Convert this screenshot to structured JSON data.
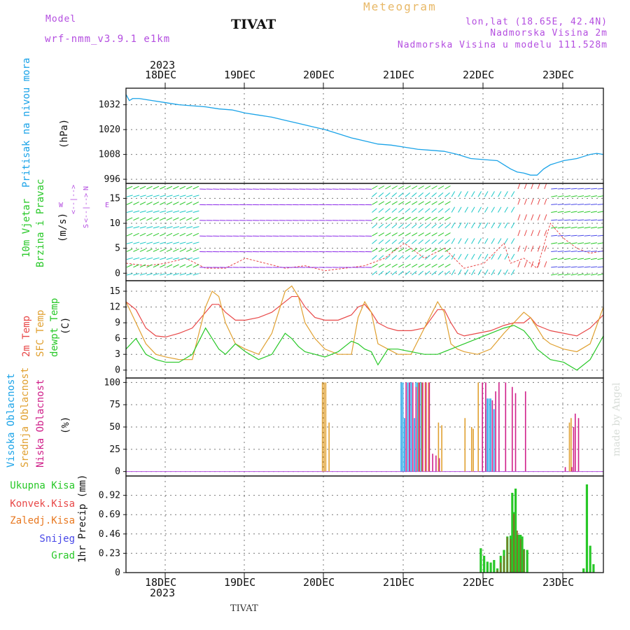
{
  "header": {
    "model_label": "Model",
    "model_name": "wrf-nmm_v3.9.1  e1km",
    "station": "TIVAT",
    "meteogram_label": "Meteogram",
    "coords": "lon,lat (18.65E, 42.4N)",
    "elev": "Nadmorska Visina 2m",
    "model_elev": "Nadmorska Visina u modelu 111.528m"
  },
  "footer": {
    "station": "TIVAT",
    "credit": "made by Angel"
  },
  "colors": {
    "pressure": "#1aa3e8",
    "t2m": "#e84848",
    "sfc": "#e0a030",
    "dew": "#28c828",
    "high_cloud": "#1aa3e8",
    "mid_cloud": "#e0a030",
    "low_cloud": "#d0208a",
    "total_rain": "#28c828",
    "conv_rain": "#e84848",
    "strat_rain": "#e87820",
    "snow": "#4848e8",
    "hail": "#28c8c8",
    "label_magenta": "#b44ee0",
    "title_gold": "#e8b866"
  },
  "time_axis": {
    "year": "2023",
    "dates": [
      "18DEC",
      "19DEC",
      "20DEC",
      "21DEC",
      "22DEC",
      "23DEC"
    ]
  },
  "labels": {
    "pressure": [
      "Pritisak na nivou mora",
      "(hPa)"
    ],
    "wind": [
      "10m Vjetar",
      "Brzina i Pravac",
      "(m/s)"
    ],
    "wind_compass": [
      "W",
      "<--|-->",
      "E",
      "S",
      "<--|-->",
      "N"
    ],
    "temp": [
      "2m Temp",
      "SFC Temp",
      "dewpt Temp",
      "(C)"
    ],
    "cloud": [
      "Visoka Oblacnost",
      "Srednja Oblacnost",
      "Niska Oblacnost",
      "(%)"
    ],
    "precip_axis": "1hr Precip (mm)",
    "precip_legend": [
      "Ukupna Kisa",
      "Konvek.Kisa",
      "Zaledj.Kisa",
      "Snijeg",
      "Grad"
    ]
  },
  "chart_data": [
    {
      "type": "line",
      "x_unit": "hours since 2023-12-17 12:00 UTC",
      "xlim": [
        0,
        144
      ],
      "ylim": [
        994,
        1040
      ],
      "yticks": [
        "996",
        "1008",
        "1020",
        "1032"
      ],
      "series": [
        {
          "x": [
            0,
            1,
            2,
            4,
            6,
            8,
            12,
            16,
            20,
            24,
            28,
            32,
            36,
            40,
            44,
            48,
            52,
            56,
            60,
            64,
            68,
            72,
            76,
            80,
            84,
            88,
            92,
            96,
            100,
            104,
            108,
            112,
            114,
            116,
            118,
            120,
            122,
            124,
            126,
            128,
            130,
            132,
            134,
            136,
            138,
            140,
            142,
            144
          ],
          "values": [
            1037,
            1034,
            1035,
            1035,
            1034.5,
            1034,
            1033,
            1032,
            1031.5,
            1031,
            1030,
            1029.5,
            1028,
            1027,
            1026,
            1024.5,
            1023,
            1021.5,
            1020,
            1018,
            1016,
            1014.5,
            1013,
            1012.5,
            1011.5,
            1010.5,
            1010,
            1009.5,
            1008,
            1006,
            1005.5,
            1005,
            1003,
            1001,
            999.5,
            999,
            998,
            998,
            1001,
            1003,
            1004,
            1005,
            1005.5,
            1006,
            1007,
            1008,
            1008.5,
            1008
          ]
        }
      ]
    },
    {
      "type": "scatter",
      "note": "wind barbs (direction + speed)",
      "xlim": [
        0,
        144
      ],
      "ylim": [
        -1.5,
        18
      ],
      "yticks": [
        "0",
        "5",
        "10",
        "15"
      ],
      "series": [
        {
          "name": "wind speed",
          "x": [
            0,
            6,
            12,
            18,
            24,
            30,
            36,
            42,
            48,
            54,
            60,
            66,
            72,
            78,
            84,
            90,
            96,
            102,
            108,
            114,
            116,
            120,
            124,
            128,
            132,
            136,
            140,
            144
          ],
          "values": [
            2,
            1.5,
            2,
            3,
            1,
            1,
            3,
            2,
            1,
            1.5,
            0.5,
            1,
            1.5,
            3,
            6,
            3,
            5,
            1,
            2,
            6,
            2,
            3,
            1,
            10,
            7,
            5,
            4,
            4.5
          ]
        }
      ]
    },
    {
      "type": "line",
      "xlim": [
        0,
        144
      ],
      "ylim": [
        -1.5,
        17
      ],
      "yticks": [
        "0",
        "3",
        "6",
        "9",
        "12",
        "15"
      ],
      "series": [
        {
          "name": "2m Temp",
          "x": [
            0,
            3,
            6,
            9,
            12,
            16,
            20,
            24,
            26,
            28,
            30,
            33,
            36,
            40,
            44,
            48,
            50,
            52,
            54,
            57,
            60,
            64,
            68,
            70,
            72,
            74,
            76,
            79,
            82,
            86,
            90,
            94,
            96,
            98,
            100,
            102,
            106,
            110,
            114,
            117,
            120,
            122,
            124,
            126,
            128,
            132,
            136,
            140,
            144
          ],
          "values": [
            13,
            11.5,
            8,
            6.5,
            6.3,
            7,
            8,
            11,
            12.5,
            12.5,
            11,
            9.5,
            9.5,
            10,
            11,
            13,
            14,
            14,
            12,
            10,
            9.5,
            9.5,
            10.5,
            12,
            12.5,
            11,
            9,
            8,
            7.5,
            7.5,
            8,
            11.5,
            11.5,
            9,
            7,
            6.5,
            7,
            7.5,
            8.5,
            9,
            9,
            10,
            8.5,
            8,
            7.5,
            7,
            6.5,
            8,
            10.5
          ]
        },
        {
          "name": "SFC Temp",
          "x": [
            0,
            3,
            6,
            9,
            12,
            16,
            20,
            24,
            26,
            28,
            30,
            33,
            36,
            40,
            44,
            48,
            50,
            52,
            54,
            57,
            60,
            64,
            68,
            70,
            72,
            74,
            76,
            79,
            82,
            86,
            90,
            94,
            96,
            98,
            100,
            102,
            106,
            110,
            114,
            117,
            120,
            122,
            124,
            126,
            128,
            132,
            136,
            140,
            144
          ],
          "values": [
            13,
            9,
            5,
            3,
            2.5,
            2,
            2,
            12,
            15,
            14,
            9,
            5,
            4,
            3,
            7,
            15,
            16,
            14,
            9,
            6,
            4,
            3,
            3,
            10,
            13,
            11,
            5,
            4,
            3,
            3,
            8,
            13,
            11,
            5,
            4,
            3.5,
            3,
            4,
            7,
            9,
            11,
            10,
            8,
            6,
            5,
            4,
            3.5,
            5,
            12
          ]
        },
        {
          "name": "dewpt Temp",
          "x": [
            0,
            3,
            6,
            9,
            12,
            16,
            20,
            24,
            26,
            28,
            30,
            33,
            36,
            40,
            44,
            48,
            50,
            52,
            54,
            57,
            60,
            64,
            68,
            70,
            72,
            74,
            76,
            79,
            82,
            86,
            90,
            94,
            96,
            98,
            100,
            102,
            106,
            110,
            114,
            117,
            120,
            122,
            124,
            126,
            128,
            132,
            136,
            140,
            144
          ],
          "values": [
            4,
            6,
            3,
            2,
            1.5,
            1.5,
            3,
            8,
            6,
            4,
            3,
            5,
            3.5,
            2,
            3,
            7,
            6,
            4.5,
            3.5,
            3,
            2.5,
            3.5,
            5.5,
            5,
            4,
            3.5,
            1,
            4,
            4,
            3.5,
            3,
            3,
            3.5,
            4,
            4.5,
            5,
            6,
            7,
            8,
            8.5,
            7.5,
            6,
            4,
            3,
            2,
            1.5,
            0,
            2,
            6.5
          ]
        }
      ]
    },
    {
      "type": "bar",
      "xlim": [
        0,
        144
      ],
      "ylim": [
        -5,
        105
      ],
      "yticks": [
        "0",
        "25",
        "50",
        "75",
        "100"
      ],
      "series": [
        {
          "name": "Visoka Oblacnost",
          "x": [
            83,
            83.5,
            84,
            84.5,
            85,
            85.5,
            86,
            86.5,
            87,
            87.5,
            88,
            89,
            108.5,
            109,
            109.5,
            110,
            111
          ],
          "values": [
            100,
            100,
            60,
            100,
            100,
            100,
            100,
            100,
            60,
            100,
            100,
            100,
            70,
            82,
            82,
            82,
            70
          ]
        },
        {
          "name": "Srednja Oblacnost",
          "x": [
            59,
            59.5,
            60,
            61,
            88,
            89,
            90,
            91,
            94,
            95,
            102,
            104,
            104.5,
            106,
            133.5,
            134
          ],
          "values": [
            100,
            100,
            100,
            55,
            100,
            100,
            100,
            100,
            55,
            52,
            60,
            50,
            48,
            100,
            55,
            60
          ]
        },
        {
          "name": "Niska Oblacnost",
          "x": [
            84,
            85,
            86,
            87,
            88,
            89,
            90,
            91,
            92,
            93,
            94,
            107,
            108,
            110,
            111,
            112,
            114,
            116,
            117,
            120,
            132,
            134,
            134.5,
            135,
            136
          ],
          "values": [
            100,
            100,
            100,
            95,
            100,
            100,
            100,
            100,
            20,
            18,
            15,
            100,
            100,
            80,
            90,
            100,
            100,
            95,
            88,
            90,
            5,
            5,
            50,
            65,
            60
          ]
        }
      ]
    },
    {
      "type": "bar",
      "xlim": [
        0,
        144
      ],
      "ylim": [
        0,
        1.15
      ],
      "yticks": [
        "0",
        "0.23",
        "0.46",
        "0.69",
        "0.92"
      ],
      "series": [
        {
          "name": "Ukupna Kisa",
          "x": [
            107,
            108,
            109,
            110,
            111,
            112,
            113,
            114,
            115,
            116,
            116.5,
            117,
            117.5,
            118,
            118.5,
            119,
            119.5,
            120,
            121,
            138,
            139,
            140,
            141
          ],
          "values": [
            0.29,
            0.2,
            0.13,
            0.12,
            0.15,
            0.05,
            0.2,
            0.27,
            0.43,
            0.44,
            0.95,
            0.72,
            1.0,
            0.45,
            0.45,
            0.45,
            0.43,
            0.28,
            0.27,
            0.05,
            1.05,
            0.32,
            0.1
          ]
        },
        {
          "name": "Konvek.Kisa",
          "x": [
            112,
            113,
            114,
            115,
            116,
            117,
            118,
            119,
            120
          ],
          "values": [
            0.03,
            0.12,
            0.2,
            0.42,
            0.4,
            0.7,
            0.5,
            0.4,
            0.27
          ]
        },
        {
          "name": "Zaledj.Kisa",
          "x": [],
          "values": []
        },
        {
          "name": "Snijeg",
          "x": [],
          "values": []
        },
        {
          "name": "Grad",
          "x": [],
          "values": []
        }
      ]
    }
  ]
}
